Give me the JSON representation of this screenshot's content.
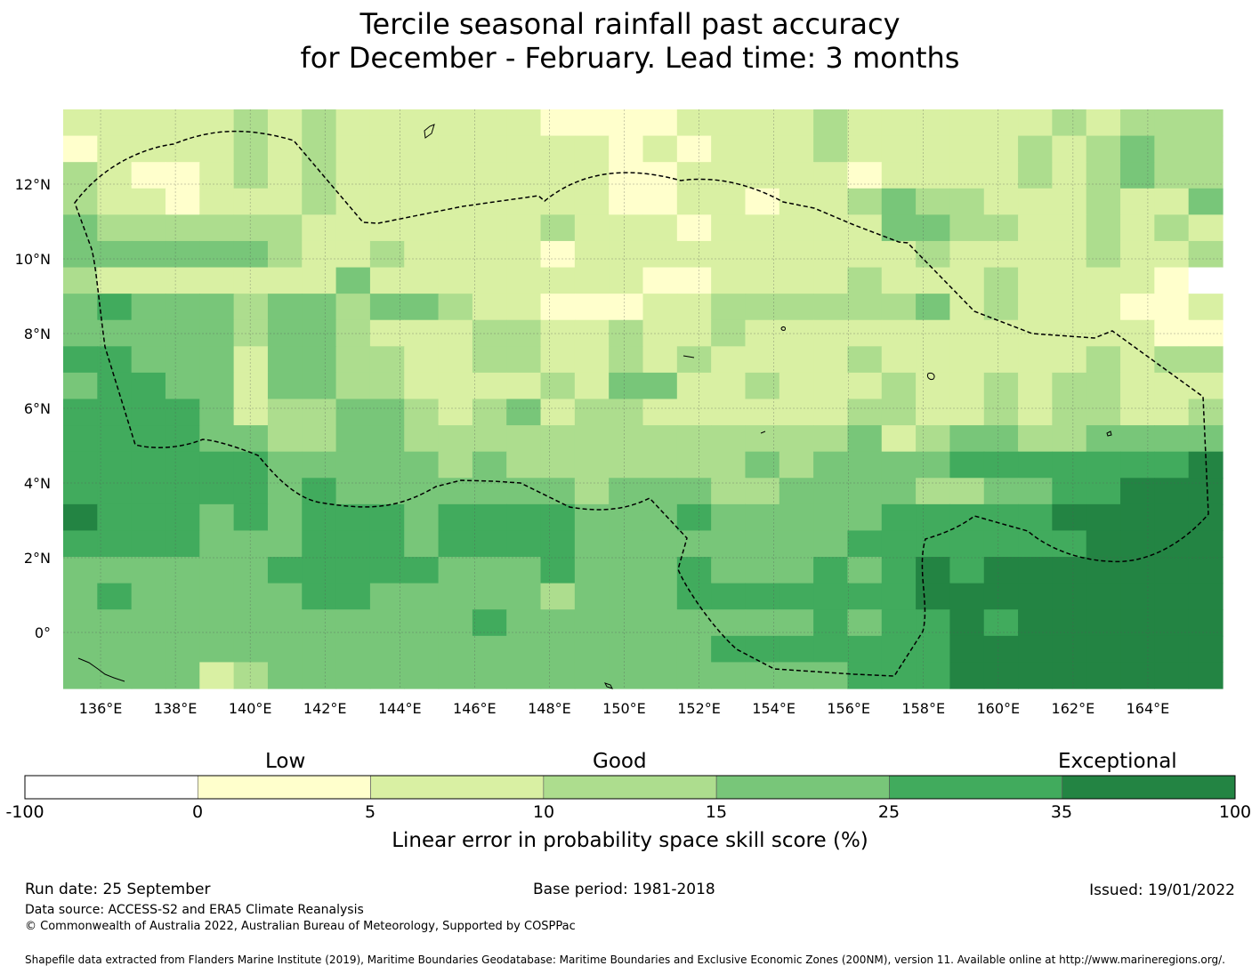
{
  "title": {
    "line1": "Tercile seasonal rainfall past accuracy",
    "line2": "for December - February. Lead time: 3 months"
  },
  "chart_data": {
    "type": "heatmap",
    "lat_range": [
      -1.5,
      14
    ],
    "lon_range": [
      135,
      166
    ],
    "x_tick_labels": [
      "136°E",
      "138°E",
      "140°E",
      "142°E",
      "144°E",
      "146°E",
      "148°E",
      "150°E",
      "152°E",
      "154°E",
      "156°E",
      "158°E",
      "160°E",
      "162°E",
      "164°E"
    ],
    "y_tick_labels": [
      "12°N",
      "10°N",
      "8°N",
      "6°N",
      "4°N",
      "2°N",
      "0°"
    ],
    "grid_levels_note": "0=<0, 1=0-5, 2=5-10, 3=10-15, 4=15-25, 5=25-35, 6=35-100",
    "grid": [
      "2222232322222211112222322222232333",
      "1222232322222222121222322222323433",
      "3211232322222222112222212222323433",
      "3221222322222222112212234332223224",
      "4333333222222232221222224433223232",
      "4444443223222212222222222322223223",
      "3222222242222222211222232223222210",
      "4544434434432211122333333423222112",
      "4444434432223322322322222222222211",
      "5544424433223322323222232222223233",
      "4554424433222232442232223223233222",
      "5555423344323423322222233223233223",
      "5555443344333333333333342344334444",
      "5555554444434333333343444455555556",
      "5555554544444443444334444334455666",
      "6555454555455554445444445555566666",
      "5555444555455554444444455555556666",
      "4444445555544454445444545656666666",
      "4544444554444434445555555666666666",
      "4444444444445444444444545565666666",
      "4444444444444444444555555566666666",
      "4444234444444444444444455566666666"
    ],
    "colorbar": {
      "boundaries": [
        -100,
        0,
        5,
        10,
        15,
        25,
        35,
        100
      ],
      "colors": [
        "#ffffff",
        "#ffffcc",
        "#d9f0a3",
        "#addd8e",
        "#78c679",
        "#41ab5d",
        "#238443"
      ],
      "tick_labels": [
        "-100",
        "0",
        "5",
        "10",
        "15",
        "25",
        "35",
        "100"
      ],
      "category_labels": [
        "Low",
        "Good",
        "Exceptional"
      ],
      "title": "Linear error in probability space skill score (%)"
    }
  },
  "footer": {
    "run_date": "Run date: 25 September",
    "base_period": "Base period: 1981-2018",
    "issued": "Issued: 19/01/2022",
    "data_source": "Data source: ACCESS-S2 and ERA5 Climate Reanalysis",
    "copyright": "© Commonwealth of Australia 2022, Australian Bureau of Meteorology, Supported by COSPPac",
    "shapefile": "Shapefile data extracted from Flanders Marine Institute (2019), Maritime Boundaries Geodatabase: Maritime Boundaries and Exclusive Economic Zones (200NM), version 11. Available online at http://www.marineregions.org/."
  }
}
